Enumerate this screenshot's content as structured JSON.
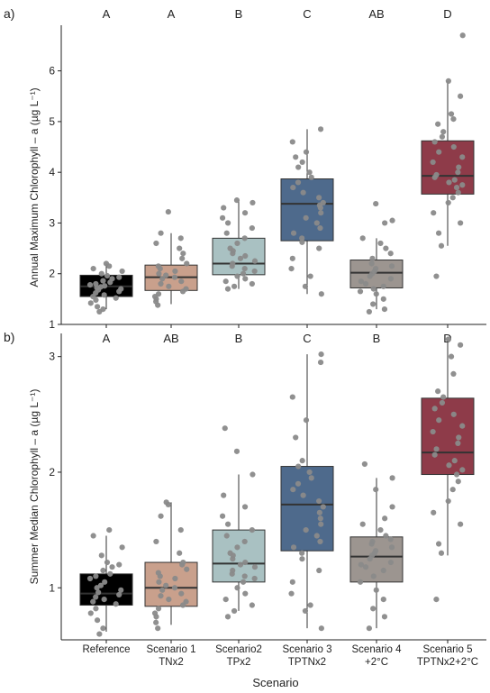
{
  "chart_data": [
    {
      "type": "box",
      "panel_label": "a)",
      "ylabel": "Annual Maximum Chlorophyll – a (µg L⁻¹)",
      "yticks": [
        1,
        2,
        3,
        4,
        5,
        6
      ],
      "ylim": [
        1,
        6.9
      ],
      "grid": false,
      "categories": [
        "Reference",
        "Scenario 1 TNx2",
        "Scenario2 TPx2",
        "Scenario 3 TPTNx2",
        "Scenario 4 +2°C",
        "Scenario 5 TPTNx2+2°C"
      ],
      "colors": [
        "#000000",
        "#c9a08c",
        "#a9c1c2",
        "#4e6a8c",
        "#9c9590",
        "#8e3b49"
      ],
      "letters": [
        "A",
        "A",
        "B",
        "C",
        "AB",
        "D"
      ],
      "boxes": [
        {
          "whisker_low": 1.3,
          "q1": 1.55,
          "median": 1.75,
          "q3": 1.97,
          "whisker_high": 2.2
        },
        {
          "whisker_low": 1.4,
          "q1": 1.67,
          "median": 1.93,
          "q3": 2.17,
          "whisker_high": 2.8
        },
        {
          "whisker_low": 1.7,
          "q1": 1.98,
          "median": 2.2,
          "q3": 2.7,
          "whisker_high": 3.45
        },
        {
          "whisker_low": 1.6,
          "q1": 2.65,
          "median": 3.38,
          "q3": 3.87,
          "whisker_high": 4.85
        },
        {
          "whisker_low": 1.3,
          "q1": 1.72,
          "median": 2.02,
          "q3": 2.27,
          "whisker_high": 2.7
        },
        {
          "whisker_low": 2.55,
          "q1": 3.57,
          "median": 3.93,
          "q3": 4.62,
          "whisker_high": 5.8
        }
      ],
      "points": [
        [
          1.25,
          1.3,
          1.35,
          1.42,
          1.48,
          1.52,
          1.55,
          1.58,
          1.62,
          1.65,
          1.68,
          1.7,
          1.72,
          1.74,
          1.76,
          1.78,
          1.8,
          1.83,
          1.86,
          1.9,
          1.93,
          1.96,
          2.0,
          2.05,
          2.1,
          2.15,
          2.2
        ],
        [
          1.38,
          1.45,
          1.5,
          1.55,
          1.6,
          1.65,
          1.7,
          1.75,
          1.8,
          1.85,
          1.9,
          1.93,
          1.97,
          2.0,
          2.05,
          2.1,
          2.15,
          2.2,
          2.3,
          2.4,
          2.5,
          2.6,
          2.7,
          2.8,
          3.22
        ],
        [
          1.7,
          1.75,
          1.8,
          1.85,
          1.9,
          1.95,
          2.0,
          2.05,
          2.1,
          2.15,
          2.2,
          2.25,
          2.3,
          2.35,
          2.4,
          2.45,
          2.5,
          2.6,
          2.7,
          2.8,
          2.9,
          3.0,
          3.1,
          3.2,
          3.3,
          3.4,
          3.45
        ],
        [
          1.6,
          1.75,
          1.95,
          2.1,
          2.3,
          2.5,
          2.62,
          2.7,
          2.8,
          2.9,
          3.0,
          3.1,
          3.2,
          3.3,
          3.35,
          3.4,
          3.5,
          3.6,
          3.7,
          3.8,
          3.9,
          4.0,
          4.1,
          4.2,
          4.3,
          4.4,
          4.6,
          4.85
        ],
        [
          1.25,
          1.3,
          1.4,
          1.5,
          1.6,
          1.65,
          1.7,
          1.75,
          1.8,
          1.85,
          1.9,
          1.95,
          2.0,
          2.05,
          2.1,
          2.15,
          2.2,
          2.3,
          2.4,
          2.5,
          2.6,
          2.7,
          3.0,
          3.05,
          3.38
        ],
        [
          1.95,
          2.55,
          2.8,
          3.0,
          3.2,
          3.4,
          3.5,
          3.6,
          3.7,
          3.75,
          3.8,
          3.85,
          3.9,
          3.95,
          4.0,
          4.1,
          4.2,
          4.3,
          4.4,
          4.5,
          4.6,
          4.7,
          4.8,
          4.95,
          5.05,
          5.15,
          5.5,
          5.8,
          6.7
        ]
      ]
    },
    {
      "type": "box",
      "panel_label": "b)",
      "ylabel": "Summer Median Chlorophyll – a (µg L⁻¹)",
      "yticks": [
        1,
        2,
        3
      ],
      "ylim": [
        0.55,
        3.2
      ],
      "grid": false,
      "xlabel": "Scenario",
      "categories": [
        "Reference",
        "Scenario 1 TNx2",
        "Scenario2 TPx2",
        "Scenario 3 TPTNx2",
        "Scenario 4 +2°C",
        "Scenario 5 TPTNx2+2°C"
      ],
      "tick_lines": [
        [
          "Reference"
        ],
        [
          "Scenario 1",
          "TNx2"
        ],
        [
          "Scenario2",
          "TPx2"
        ],
        [
          "Scenario 3",
          "TPTNx2"
        ],
        [
          "Scenario 4",
          "+2°C"
        ],
        [
          "Scenario 5",
          "TPTNx2+2°C"
        ]
      ],
      "colors": [
        "#000000",
        "#c9a08c",
        "#a9c1c2",
        "#4e6a8c",
        "#9c9590",
        "#8e3b49"
      ],
      "letters": [
        "A",
        "AB",
        "B",
        "C",
        "B",
        "D"
      ],
      "boxes": [
        {
          "whisker_low": 0.62,
          "q1": 0.85,
          "median": 0.95,
          "q3": 1.12,
          "whisker_high": 1.45
        },
        {
          "whisker_low": 0.68,
          "q1": 0.84,
          "median": 1.0,
          "q3": 1.22,
          "whisker_high": 1.74
        },
        {
          "whisker_low": 0.8,
          "q1": 1.05,
          "median": 1.21,
          "q3": 1.5,
          "whisker_high": 1.98
        },
        {
          "whisker_low": 0.65,
          "q1": 1.32,
          "median": 1.72,
          "q3": 2.05,
          "whisker_high": 3.02
        },
        {
          "whisker_low": 0.65,
          "q1": 1.05,
          "median": 1.27,
          "q3": 1.44,
          "whisker_high": 1.95
        },
        {
          "whisker_low": 1.28,
          "q1": 1.98,
          "median": 2.17,
          "q3": 2.64,
          "whisker_high": 3.15
        }
      ],
      "points": [
        [
          0.6,
          0.65,
          0.72,
          0.78,
          0.82,
          0.86,
          0.88,
          0.9,
          0.92,
          0.94,
          0.96,
          0.98,
          1.0,
          1.02,
          1.05,
          1.08,
          1.1,
          1.12,
          1.15,
          1.18,
          1.2,
          1.22,
          1.28,
          1.35,
          1.45,
          1.5
        ],
        [
          0.65,
          0.7,
          0.75,
          0.78,
          0.82,
          0.85,
          0.88,
          0.9,
          0.93,
          0.95,
          0.98,
          1.0,
          1.02,
          1.05,
          1.08,
          1.1,
          1.13,
          1.16,
          1.2,
          1.22,
          1.3,
          1.4,
          1.5,
          1.62,
          1.72,
          1.74
        ],
        [
          0.75,
          0.8,
          0.85,
          0.9,
          0.95,
          1.0,
          1.05,
          1.08,
          1.1,
          1.12,
          1.15,
          1.18,
          1.2,
          1.22,
          1.25,
          1.28,
          1.3,
          1.35,
          1.4,
          1.45,
          1.5,
          1.55,
          1.62,
          1.7,
          1.8,
          1.98,
          2.18,
          2.38
        ],
        [
          0.65,
          0.8,
          0.85,
          0.95,
          1.05,
          1.15,
          1.25,
          1.3,
          1.35,
          1.4,
          1.45,
          1.5,
          1.55,
          1.6,
          1.65,
          1.7,
          1.75,
          1.8,
          1.85,
          1.9,
          1.95,
          2.0,
          2.05,
          2.1,
          2.3,
          2.45,
          2.65,
          2.95,
          3.02
        ],
        [
          0.65,
          0.75,
          0.82,
          0.9,
          0.98,
          1.05,
          1.1,
          1.15,
          1.18,
          1.2,
          1.22,
          1.25,
          1.28,
          1.3,
          1.32,
          1.35,
          1.38,
          1.4,
          1.42,
          1.45,
          1.5,
          1.55,
          1.6,
          1.7,
          1.85,
          1.95,
          2.07
        ],
        [
          0.9,
          1.3,
          1.38,
          1.55,
          1.65,
          1.75,
          1.85,
          1.92,
          1.98,
          2.02,
          2.06,
          2.1,
          2.15,
          2.2,
          2.25,
          2.3,
          2.35,
          2.4,
          2.45,
          2.5,
          2.55,
          2.6,
          2.65,
          2.7,
          2.85,
          3.0,
          3.1,
          3.15
        ]
      ]
    }
  ]
}
